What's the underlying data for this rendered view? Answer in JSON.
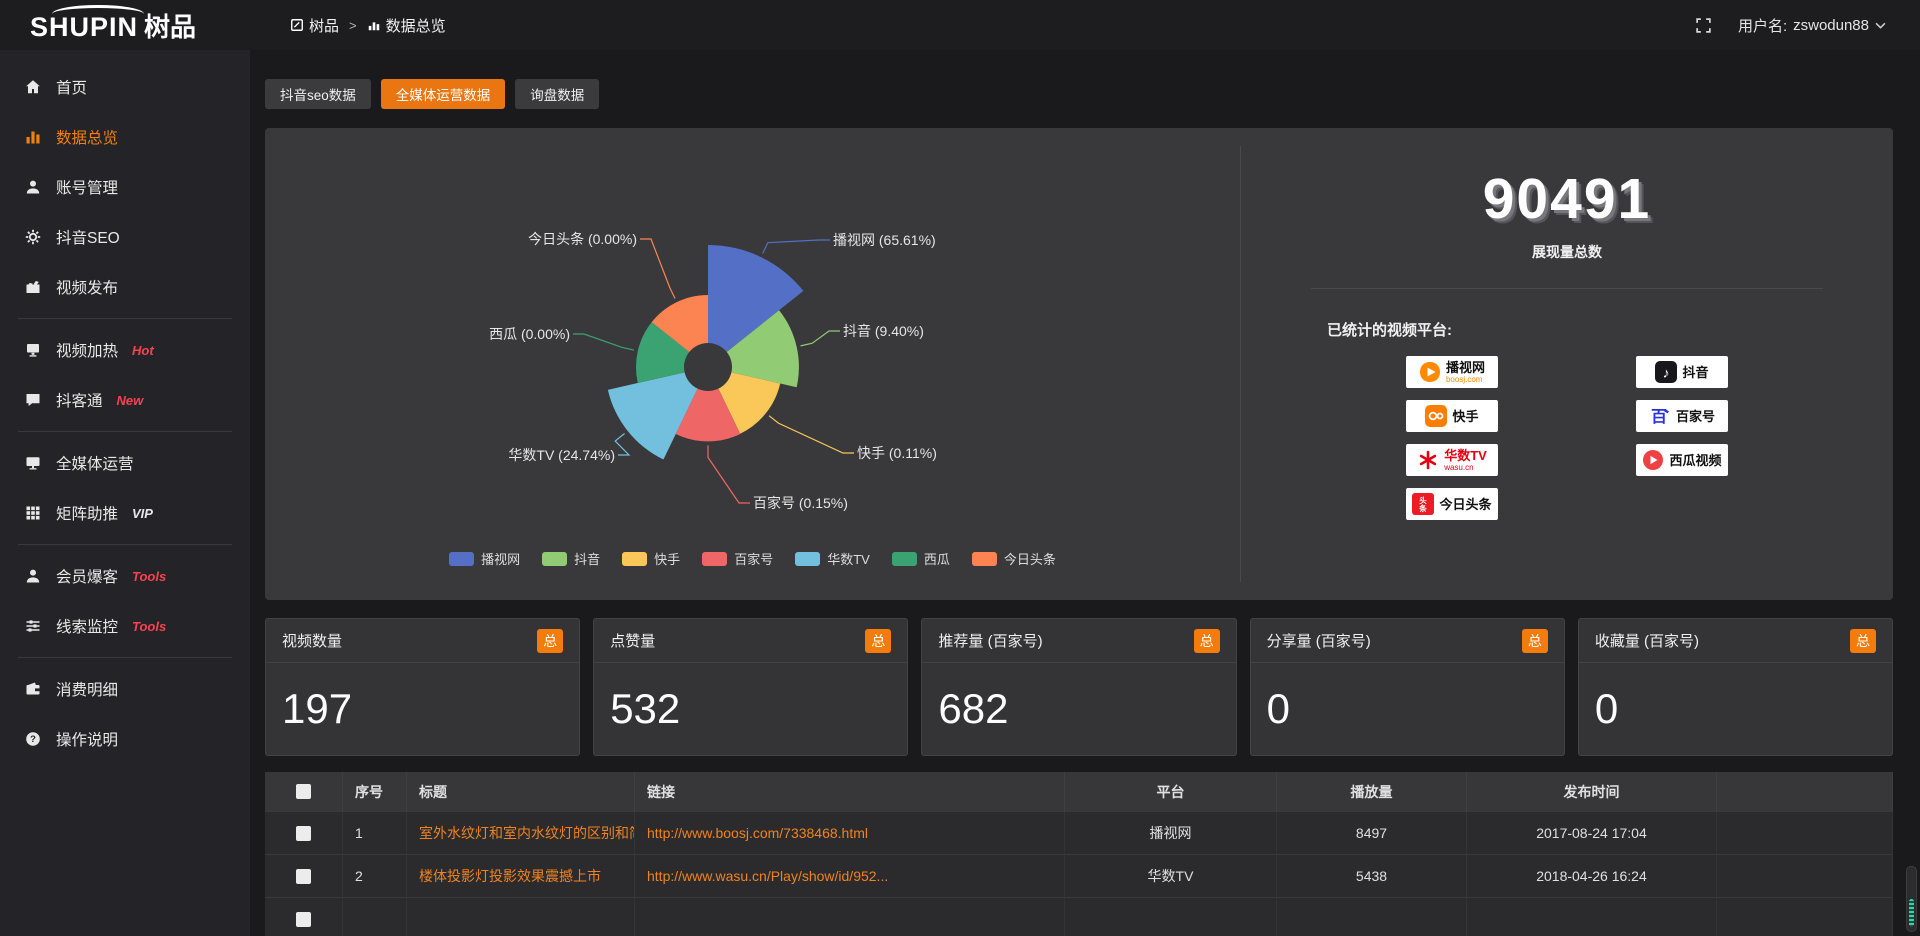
{
  "theme": {
    "accent": "#ea7612",
    "panel_bg": "#39393c",
    "page_bg": "#1a1a1c",
    "link_orange": "#f0831e"
  },
  "topbar": {
    "logo_en": "SHUPIN",
    "logo_cn": "树品",
    "breadcrumb": {
      "root": "树品",
      "sep": ">",
      "current": "数据总览"
    },
    "username_label": "用户名:",
    "username": "zswodun88"
  },
  "sidebar": {
    "items": [
      {
        "label": "首页",
        "icon": "home"
      },
      {
        "label": "数据总览",
        "icon": "chart",
        "active": true
      },
      {
        "label": "账号管理",
        "icon": "user",
        "chevron": true
      },
      {
        "label": "抖音SEO",
        "icon": "gear",
        "chevron": true
      },
      {
        "label": "视频发布",
        "icon": "video",
        "chevron": true,
        "divider_after": true
      },
      {
        "label": "视频加热",
        "icon": "screen",
        "badge": "Hot",
        "badge_color": "#f5434f",
        "chevron": true
      },
      {
        "label": "抖客通",
        "icon": "chat",
        "badge": "New",
        "badge_color": "#f5434f",
        "chevron": true,
        "divider_after": true
      },
      {
        "label": "全媒体运营",
        "icon": "monitor",
        "chevron": true
      },
      {
        "label": "矩阵助推",
        "icon": "grid",
        "badge": "VIP",
        "badge_color": "#dda califica0e",
        "chevron": true,
        "divider_after": true
      },
      {
        "label": "会员爆客",
        "icon": "person",
        "badge": "Tools",
        "badge_color": "#f5434f",
        "chevron": true
      },
      {
        "label": "线索监控",
        "icon": "sliders",
        "badge": "Tools",
        "badge_color": "#f5434f",
        "chevron": true,
        "divider_after": true
      },
      {
        "label": "消费明细",
        "icon": "wallet"
      },
      {
        "label": "操作说明",
        "icon": "question"
      }
    ]
  },
  "tabs": [
    {
      "label": "抖音seo数据"
    },
    {
      "label": "全媒体运营数据",
      "active": true
    },
    {
      "label": "询盘数据"
    }
  ],
  "chart_data": {
    "type": "pie",
    "subtype": "nightingale-rose",
    "legend_position": "bottom",
    "slices": [
      {
        "name": "播视网",
        "pct": 65.61,
        "label": "播视网 (65.61%)",
        "color": "#5470c6"
      },
      {
        "name": "抖音",
        "pct": 9.4,
        "label": "抖音 (9.40%)",
        "color": "#91cc75"
      },
      {
        "name": "快手",
        "pct": 0.11,
        "label": "快手 (0.11%)",
        "color": "#fac858"
      },
      {
        "name": "百家号",
        "pct": 0.15,
        "label": "百家号 (0.15%)",
        "color": "#ee6666"
      },
      {
        "name": "华数TV",
        "pct": 24.74,
        "label": "华数TV (24.74%)",
        "color": "#73c0de"
      },
      {
        "name": "西瓜",
        "pct": 0.0,
        "label": "西瓜 (0.00%)",
        "color": "#3ba272"
      },
      {
        "name": "今日头条",
        "pct": 0.0,
        "label": "今日头条 (0.00%)",
        "color": "#fc8452"
      }
    ]
  },
  "summary": {
    "total_value": "90491",
    "total_label": "展现量总数",
    "platforms_label": "已统计的视频平台:",
    "platform_columns_left": [
      {
        "name": "播视网",
        "sub": "boosj.com",
        "icon": "boosj",
        "sub_color": "#ff8a00"
      },
      {
        "name": "快手",
        "icon": "kuaishou"
      },
      {
        "name": "华数TV",
        "sub": "wasu.cn",
        "icon": "wasu",
        "name_color": "#e60012",
        "sub_color": "#e60012"
      },
      {
        "name": "今日头条",
        "icon": "toutiao"
      }
    ],
    "platform_columns_right": [
      {
        "name": "抖音",
        "icon": "douyin"
      },
      {
        "name": "百家号",
        "icon": "baijiahao"
      },
      {
        "name": "西瓜视频",
        "icon": "xigua"
      }
    ]
  },
  "stat_cards": [
    {
      "title": "视频数量",
      "badge": "总",
      "value": "197"
    },
    {
      "title": "点赞量",
      "badge": "总",
      "value": "532"
    },
    {
      "title": "推荐量 (百家号)",
      "badge": "总",
      "value": "682"
    },
    {
      "title": "分享量 (百家号)",
      "badge": "总",
      "value": "0"
    },
    {
      "title": "收藏量 (百家号)",
      "badge": "总",
      "value": "0"
    }
  ],
  "table": {
    "headers": [
      "序号",
      "标题",
      "链接",
      "平台",
      "播放量",
      "发布时间"
    ],
    "rows": [
      {
        "index": "1",
        "title": "室外水纹灯和室内水纹灯的区别和简介",
        "url": "http://www.boosj.com/7338468.html",
        "platform": "播视网",
        "plays": "8497",
        "time": "2017-08-24 17:04",
        "has_cb": true
      },
      {
        "index": "2",
        "title": "楼体投影灯投影效果震撼上市",
        "url": "http://www.wasu.cn/Play/show/id/952...",
        "platform": "华数TV",
        "plays": "5438",
        "time": "2018-04-26 16:24",
        "has_cb": true
      },
      {
        "index": "",
        "title": "",
        "url": "",
        "platform": "",
        "plays": "",
        "time": "",
        "has_cb": true
      }
    ]
  }
}
